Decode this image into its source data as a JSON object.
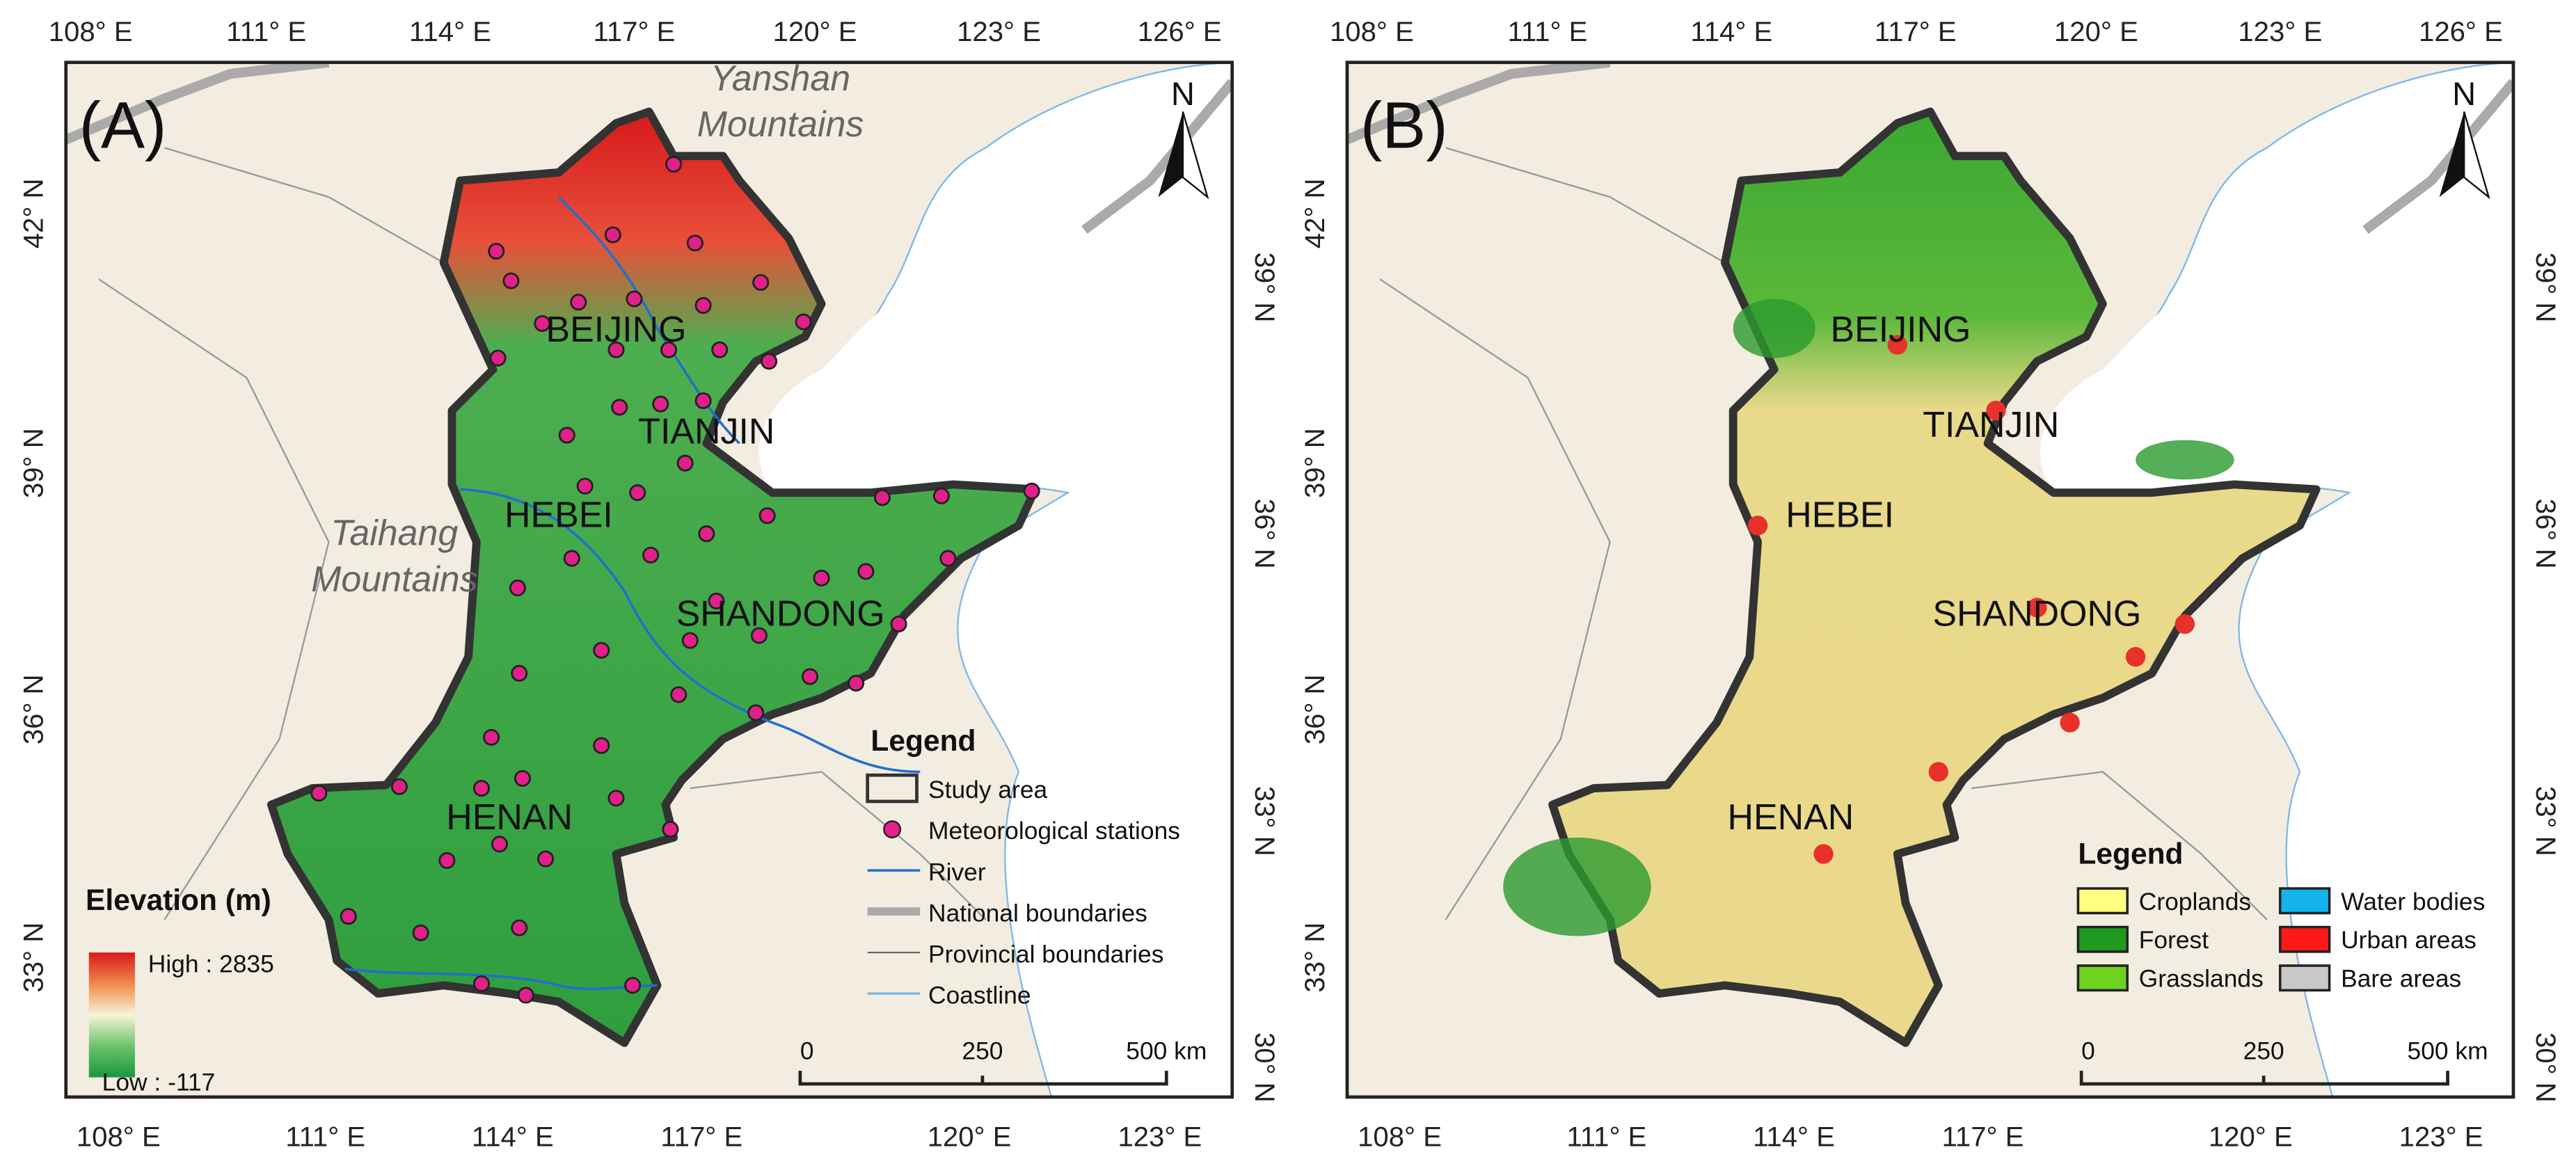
{
  "panels": [
    {
      "label": "(A)",
      "north": "N",
      "x_ticks_top": [
        "108° E",
        "111° E",
        "114° E",
        "117° E",
        "120° E",
        "123° E",
        "126° E"
      ],
      "x_ticks_bottom": [
        "108° E",
        "111° E",
        "114° E",
        "117° E",
        "120° E",
        "123° E"
      ],
      "y_ticks_left": [
        "42° N",
        "39° N",
        "36° N",
        "33° N"
      ],
      "y_ticks_right": [
        "39° N",
        "36° N",
        "33° N",
        "30° N"
      ],
      "places": [
        "BEIJING",
        "TIANJIN",
        "HEBEI",
        "SHANDONG",
        "HENAN"
      ],
      "mountains": [
        [
          "Yanshan",
          "Mountains"
        ],
        [
          "Taihang",
          "Mountains"
        ]
      ],
      "legend": {
        "title": "Legend",
        "items": [
          "Study area",
          "Meteorological stations",
          "River",
          "National boundaries",
          "Provincial boundaries",
          "Coastline"
        ]
      },
      "elevation_legend": {
        "title": "Elevation (m)",
        "high": "High : 2835",
        "low": "Low : -117"
      },
      "scale": [
        "0",
        "250",
        "500 km"
      ]
    },
    {
      "label": "(B)",
      "north": "N",
      "x_ticks_top": [
        "108° E",
        "111° E",
        "114° E",
        "117° E",
        "120° E",
        "123° E",
        "126° E"
      ],
      "x_ticks_bottom": [
        "108° E",
        "111° E",
        "114° E",
        "117° E",
        "120° E",
        "123° E"
      ],
      "y_ticks_left": [
        "42° N",
        "39° N",
        "36° N",
        "33° N"
      ],
      "y_ticks_right": [
        "39° N",
        "36° N",
        "33° N",
        "30° N"
      ],
      "places": [
        "BEIJING",
        "TIANJIN",
        "HEBEI",
        "SHANDONG",
        "HENAN"
      ],
      "legend": {
        "title": "Legend",
        "items": [
          "Croplands",
          "Forest",
          "Grasslands",
          "Water bodies",
          "Urban areas",
          "Bare areas"
        ]
      },
      "scale": [
        "0",
        "250",
        "500 km"
      ]
    }
  ]
}
